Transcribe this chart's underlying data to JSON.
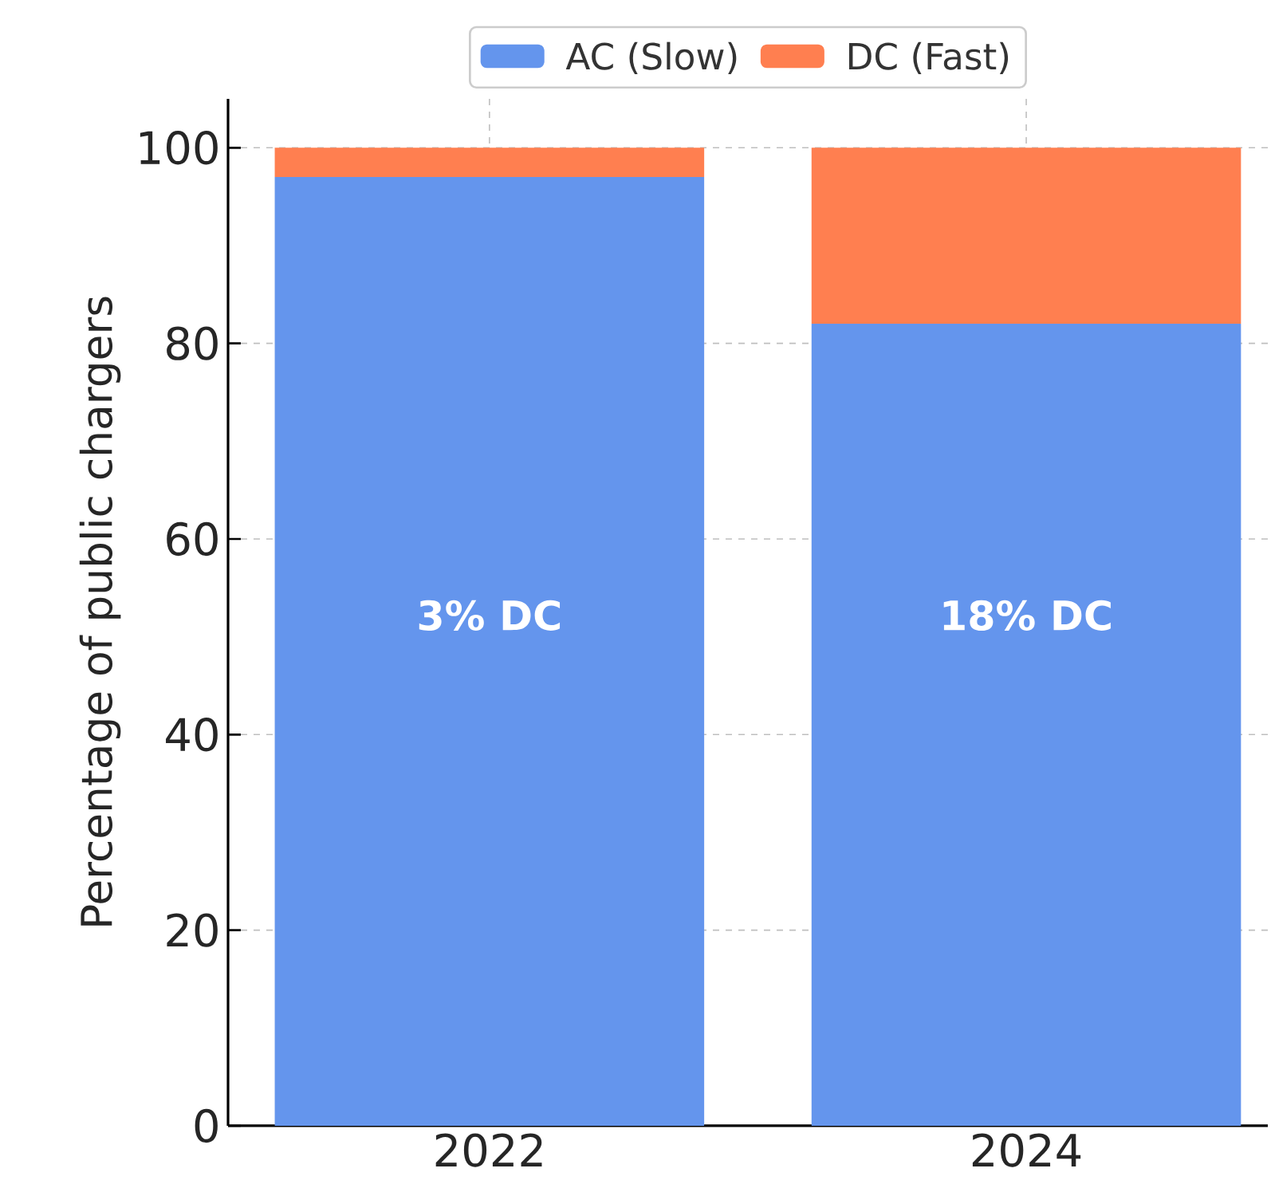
{
  "chart_data": {
    "type": "bar",
    "stacked": true,
    "ylabel": "Percentage of public chargers",
    "categories": [
      "2022",
      "2024"
    ],
    "series": [
      {
        "name": "AC (Slow)",
        "color": "#6495ed",
        "values": [
          97,
          82
        ]
      },
      {
        "name": "DC (Fast)",
        "color": "#ff7f50",
        "values": [
          3,
          18
        ]
      }
    ],
    "ylim": [
      0,
      105
    ],
    "yticks": [
      0,
      20,
      40,
      60,
      80,
      100
    ],
    "grid": true,
    "legend": "top",
    "annotations": [
      "3% DC",
      "18% DC"
    ]
  }
}
